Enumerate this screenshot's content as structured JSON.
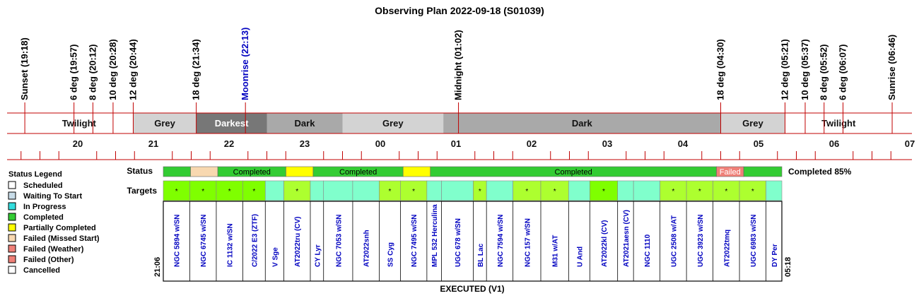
{
  "title": "Observing Plan 2022-09-18 (S01039)",
  "colors": {
    "timeline": "#c00000",
    "event_text": "#000000",
    "moon_text": "#0000c0",
    "target_text": "#0000c0",
    "status_completed": "#33cc33",
    "status_partial": "#ffff00",
    "status_missed_start": "#f8d8b0",
    "status_failed": "#f08078",
    "status_scheduled": "#ffffff",
    "status_waiting": "#c8dce8",
    "status_in_progress": "#33dddd",
    "status_cancelled": "#ffffff",
    "target_a": "#7fff00",
    "target_b": "#adff2f",
    "target_c": "#80ffcc",
    "twilight": "#ffffff",
    "grey": "#d3d3d3",
    "darkest": "#777777",
    "dark": "#a9a9a9"
  },
  "chart_data": {
    "type": "timeline",
    "time_start": "19:00",
    "time_end": "07:00",
    "events": [
      {
        "label": "Sunset (19:18)",
        "time": "19:18",
        "kind": "sun"
      },
      {
        "label": "6 deg (19:57)",
        "time": "19:57",
        "kind": "sun"
      },
      {
        "label": "8 deg (20:12)",
        "time": "20:12",
        "kind": "sun"
      },
      {
        "label": "10 deg (20:28)",
        "time": "20:28",
        "kind": "sun"
      },
      {
        "label": "12 deg (20:44)",
        "time": "20:44",
        "kind": "sun"
      },
      {
        "label": "18 deg (21:34)",
        "time": "21:34",
        "kind": "sun"
      },
      {
        "label": "Moonrise (22:13)",
        "time": "22:13",
        "kind": "moon"
      },
      {
        "label": "Midnight (01:02)",
        "time": "01:02",
        "kind": "sun"
      },
      {
        "label": "18 deg (04:30)",
        "time": "04:30",
        "kind": "sun"
      },
      {
        "label": "12 deg (05:21)",
        "time": "05:21",
        "kind": "sun"
      },
      {
        "label": "10 deg (05:37)",
        "time": "05:37",
        "kind": "sun"
      },
      {
        "label": "8 deg (05:52)",
        "time": "05:52",
        "kind": "sun"
      },
      {
        "label": "6 deg (06:07)",
        "time": "06:07",
        "kind": "sun"
      },
      {
        "label": "Sunrise (06:46)",
        "time": "06:46",
        "kind": "sun"
      }
    ],
    "periods": [
      {
        "label": "Twilight",
        "start": "19:18",
        "end": "20:44",
        "shade": "twilight"
      },
      {
        "label": "Grey",
        "start": "20:44",
        "end": "21:34",
        "shade": "grey"
      },
      {
        "label": "Darkest",
        "start": "21:34",
        "end": "22:30",
        "shade": "darkest"
      },
      {
        "label": "Dark",
        "start": "22:30",
        "end": "23:30",
        "shade": "dark"
      },
      {
        "label": "Grey",
        "start": "23:30",
        "end": "00:50",
        "shade": "grey"
      },
      {
        "label": "Dark",
        "start": "00:50",
        "end": "04:30",
        "shade": "dark"
      },
      {
        "label": "Grey",
        "start": "04:30",
        "end": "05:21",
        "shade": "grey"
      },
      {
        "label": "Twilight",
        "start": "05:21",
        "end": "06:46",
        "shade": "twilight"
      }
    ],
    "hour_labels": [
      "20",
      "21",
      "22",
      "23",
      "00",
      "01",
      "02",
      "03",
      "04",
      "05",
      "06",
      "07"
    ],
    "status_row_label": "Status",
    "status_summary": "Completed 85%",
    "status_segments": [
      {
        "label": "",
        "status": "completed",
        "weight": 1
      },
      {
        "label": "",
        "status": "missed_start",
        "weight": 1
      },
      {
        "label": "Completed",
        "status": "completed",
        "weight": 2.5
      },
      {
        "label": "",
        "status": "partial",
        "weight": 1
      },
      {
        "label": "Completed",
        "status": "completed",
        "weight": 3.3
      },
      {
        "label": "",
        "status": "partial",
        "weight": 1
      },
      {
        "label": "Completed",
        "status": "completed",
        "weight": 10.5
      },
      {
        "label": "Failed",
        "status": "failed",
        "weight": 1
      },
      {
        "label": "",
        "status": "completed",
        "weight": 1.4
      }
    ],
    "targets_row_label": "Targets",
    "targets": [
      {
        "name": "NGC 5894 w/SN",
        "color": "target_a",
        "mark": "*"
      },
      {
        "name": "NGC 6745 w/SN",
        "color": "target_a",
        "mark": "*"
      },
      {
        "name": "IC 1132 w/SN",
        "color": "target_a",
        "mark": "*"
      },
      {
        "name": "C/2022 E3 (ZTF)",
        "color": "target_a",
        "mark": "*"
      },
      {
        "name": "V Sge",
        "color": "target_c",
        "mark": ""
      },
      {
        "name": "AT2022tru (CV)",
        "color": "target_b",
        "mark": "*"
      },
      {
        "name": "CY Lyr",
        "color": "target_c",
        "mark": ""
      },
      {
        "name": "NGC 7053 w/SN",
        "color": "target_c",
        "mark": ""
      },
      {
        "name": "AT2022snh",
        "color": "target_c",
        "mark": ""
      },
      {
        "name": "SS Cyg",
        "color": "target_b",
        "mark": "*"
      },
      {
        "name": "NGC 7495 w/SN",
        "color": "target_b",
        "mark": "*"
      },
      {
        "name": "MPL 532 Herculina",
        "color": "target_c",
        "mark": ""
      },
      {
        "name": "UGC 678 w/SN",
        "color": "target_c",
        "mark": ""
      },
      {
        "name": "BL Lac",
        "color": "target_b",
        "mark": "*"
      },
      {
        "name": "NGC 7594 w/SN",
        "color": "target_c",
        "mark": ""
      },
      {
        "name": "NGC 157 w/SN",
        "color": "target_b",
        "mark": "*"
      },
      {
        "name": "M31 w/AT",
        "color": "target_b",
        "mark": "*"
      },
      {
        "name": "U And",
        "color": "target_c",
        "mark": ""
      },
      {
        "name": "AT2022kl (CV)",
        "color": "target_a",
        "mark": "*"
      },
      {
        "name": "AT2021aesn (CV)",
        "color": "target_c",
        "mark": ""
      },
      {
        "name": "NGC 1110",
        "color": "target_c",
        "mark": ""
      },
      {
        "name": "UGC 2508 w/AT",
        "color": "target_b",
        "mark": "*"
      },
      {
        "name": "UGC 3923 w/SN",
        "color": "target_b",
        "mark": "*"
      },
      {
        "name": "AT2022tmq",
        "color": "target_b",
        "mark": "*"
      },
      {
        "name": "UGC 6983 w/SN",
        "color": "target_b",
        "mark": "*"
      },
      {
        "name": "DY Per",
        "color": "target_c",
        "mark": ""
      }
    ],
    "target_weights": [
      1,
      1,
      1,
      0.85,
      0.7,
      1,
      0.5,
      1.1,
      1,
      0.8,
      1,
      0.55,
      1.2,
      0.5,
      1,
      1.05,
      1.05,
      0.8,
      1.05,
      0.6,
      1,
      1,
      1,
      1,
      1,
      0.6
    ],
    "start_label": "21:06",
    "end_label": "05:18",
    "footer": "EXECUTED (V1)"
  },
  "legend": {
    "title": "Status Legend",
    "items": [
      {
        "label": "Scheduled",
        "status": "scheduled"
      },
      {
        "label": "Waiting To Start",
        "status": "waiting"
      },
      {
        "label": "In Progress",
        "status": "in_progress"
      },
      {
        "label": "Completed",
        "status": "completed"
      },
      {
        "label": "Partially Completed",
        "status": "partial"
      },
      {
        "label": "Failed (Missed Start)",
        "status": "missed_start"
      },
      {
        "label": "Failed (Weather)",
        "status": "failed"
      },
      {
        "label": "Failed (Other)",
        "status": "failed"
      },
      {
        "label": "Cancelled",
        "status": "cancelled"
      }
    ]
  }
}
